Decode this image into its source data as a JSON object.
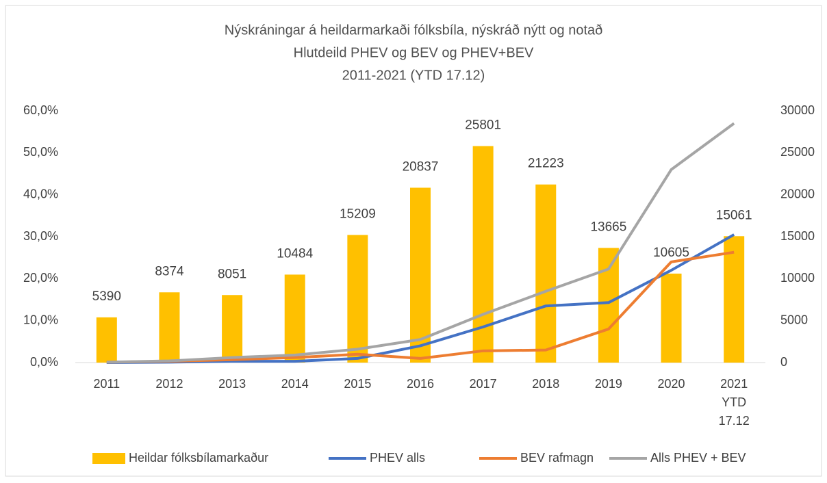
{
  "chart_data": {
    "type": "combo",
    "title": [
      "Nýskráningar á heildarmarkaði fólksbíla, nýskráð nýtt og notað",
      "Hlutdeild PHEV og BEV og PHEV+BEV",
      "2011-2021 (YTD 17.12)"
    ],
    "categories": [
      "2011",
      "2012",
      "2013",
      "2014",
      "2015",
      "2016",
      "2017",
      "2018",
      "2019",
      "2020",
      "2021 YTD 17.12"
    ],
    "series": [
      {
        "name": "Heildar fólksbílamarkaður",
        "type": "bar",
        "axis": "y2",
        "color": "#ffc000",
        "values": [
          5390,
          8374,
          8051,
          10484,
          15209,
          20837,
          25801,
          21223,
          13665,
          10605,
          15061
        ]
      },
      {
        "name": "PHEV alls",
        "type": "line",
        "color": "#4472c4",
        "values": [
          0,
          0.1,
          0.3,
          0.3,
          1.0,
          4.0,
          8.5,
          13.5,
          14.3,
          22.0,
          30.5
        ]
      },
      {
        "name": "BEV rafmagn",
        "type": "line",
        "color": "#ed7d31",
        "values": [
          0.1,
          0.3,
          0.7,
          1.2,
          2.0,
          1.0,
          2.8,
          3.0,
          8.0,
          24.0,
          26.3
        ]
      },
      {
        "name": "Alls PHEV + BEV",
        "type": "line",
        "color": "#a5a5a5",
        "values": [
          0.1,
          0.4,
          1.2,
          1.8,
          3.2,
          5.5,
          11.5,
          17.0,
          22.3,
          46.0,
          57.0
        ]
      }
    ],
    "ylim": [
      0,
      60
    ],
    "yticks": [
      {
        "value": 0,
        "label": "0,0%"
      },
      {
        "value": 10,
        "label": "10,0%"
      },
      {
        "value": 20,
        "label": "20,0%"
      },
      {
        "value": 30,
        "label": "30,0%"
      },
      {
        "value": 40,
        "label": "40,0%"
      },
      {
        "value": 50,
        "label": "50,0%"
      },
      {
        "value": 60,
        "label": "60,0%"
      }
    ],
    "y2lim": [
      0,
      30000
    ],
    "y2ticks": [
      0,
      5000,
      10000,
      15000,
      20000,
      25000,
      30000
    ],
    "grid": false,
    "legend": "bottom"
  }
}
